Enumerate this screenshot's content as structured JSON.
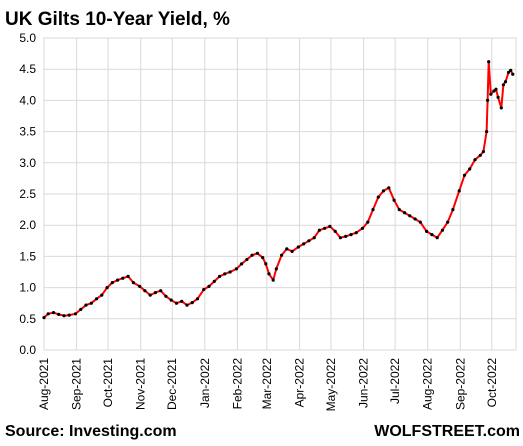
{
  "chart_data": {
    "type": "line",
    "title": "UK Gilts 10-Year Yield, %",
    "source": "Source: Investing.com",
    "brand": "WOLFSTREET.com",
    "ylim": [
      0,
      5
    ],
    "yticks": [
      "0.0",
      "0.5",
      "1.0",
      "1.5",
      "2.0",
      "2.5",
      "3.0",
      "3.5",
      "4.0",
      "4.5",
      "5.0"
    ],
    "xticks": [
      "Aug-2021",
      "Sep-2021",
      "Oct-2021",
      "Nov-2021",
      "Dec-2021",
      "Jan-2022",
      "Feb-2022",
      "Mar-2022",
      "Apr-2022",
      "May-2022",
      "Jun-2022",
      "Jul-2022",
      "Aug-2022",
      "Sep-2022",
      "Oct-2022"
    ],
    "grid": true,
    "line_color": "#ff0000",
    "marker_color": "#000000",
    "series": [
      {
        "x": [
          "2021-08-01",
          "2021-08-05",
          "2021-08-10",
          "2021-08-15",
          "2021-08-20",
          "2021-08-25",
          "2021-08-31",
          "2021-09-05",
          "2021-09-10",
          "2021-09-15",
          "2021-09-20",
          "2021-09-25",
          "2021-09-30",
          "2021-10-05",
          "2021-10-10",
          "2021-10-15",
          "2021-10-20",
          "2021-10-25",
          "2021-10-31",
          "2021-11-05",
          "2021-11-10",
          "2021-11-15",
          "2021-11-20",
          "2021-11-25",
          "2021-11-30",
          "2021-12-05",
          "2021-12-10",
          "2021-12-15",
          "2021-12-20",
          "2021-12-25",
          "2021-12-31",
          "2022-01-05",
          "2022-01-10",
          "2022-01-15",
          "2022-01-20",
          "2022-01-25",
          "2022-01-31",
          "2022-02-05",
          "2022-02-10",
          "2022-02-15",
          "2022-02-20",
          "2022-02-25",
          "2022-02-28",
          "2022-03-03",
          "2022-03-07",
          "2022-03-10",
          "2022-03-15",
          "2022-03-20",
          "2022-03-25",
          "2022-03-31",
          "2022-04-05",
          "2022-04-10",
          "2022-04-15",
          "2022-04-20",
          "2022-04-25",
          "2022-04-30",
          "2022-05-05",
          "2022-05-10",
          "2022-05-15",
          "2022-05-20",
          "2022-05-25",
          "2022-05-31",
          "2022-06-05",
          "2022-06-10",
          "2022-06-15",
          "2022-06-20",
          "2022-06-25",
          "2022-06-30",
          "2022-07-05",
          "2022-07-10",
          "2022-07-15",
          "2022-07-20",
          "2022-07-25",
          "2022-07-31",
          "2022-08-05",
          "2022-08-10",
          "2022-08-15",
          "2022-08-20",
          "2022-08-25",
          "2022-08-31",
          "2022-09-05",
          "2022-09-10",
          "2022-09-15",
          "2022-09-20",
          "2022-09-23",
          "2022-09-26",
          "2022-09-27",
          "2022-09-28",
          "2022-09-30",
          "2022-10-03",
          "2022-10-05",
          "2022-10-07",
          "2022-10-10",
          "2022-10-12",
          "2022-10-14",
          "2022-10-17",
          "2022-10-19",
          "2022-10-21"
        ],
        "values": [
          0.52,
          0.58,
          0.6,
          0.57,
          0.55,
          0.56,
          0.58,
          0.65,
          0.72,
          0.75,
          0.82,
          0.88,
          1.0,
          1.08,
          1.12,
          1.15,
          1.18,
          1.08,
          1.02,
          0.95,
          0.88,
          0.92,
          0.95,
          0.86,
          0.8,
          0.75,
          0.78,
          0.72,
          0.76,
          0.82,
          0.97,
          1.02,
          1.1,
          1.18,
          1.22,
          1.25,
          1.3,
          1.38,
          1.45,
          1.52,
          1.55,
          1.48,
          1.38,
          1.22,
          1.12,
          1.3,
          1.52,
          1.62,
          1.58,
          1.65,
          1.7,
          1.75,
          1.8,
          1.92,
          1.95,
          1.98,
          1.9,
          1.8,
          1.82,
          1.85,
          1.88,
          1.95,
          2.05,
          2.25,
          2.45,
          2.55,
          2.6,
          2.4,
          2.25,
          2.2,
          2.15,
          2.1,
          2.05,
          1.9,
          1.85,
          1.8,
          1.92,
          2.05,
          2.25,
          2.55,
          2.8,
          2.9,
          3.05,
          3.12,
          3.18,
          3.5,
          4.0,
          4.62,
          4.1,
          4.15,
          4.18,
          4.05,
          3.88,
          4.25,
          4.3,
          4.45,
          4.48,
          4.42
        ]
      }
    ]
  }
}
